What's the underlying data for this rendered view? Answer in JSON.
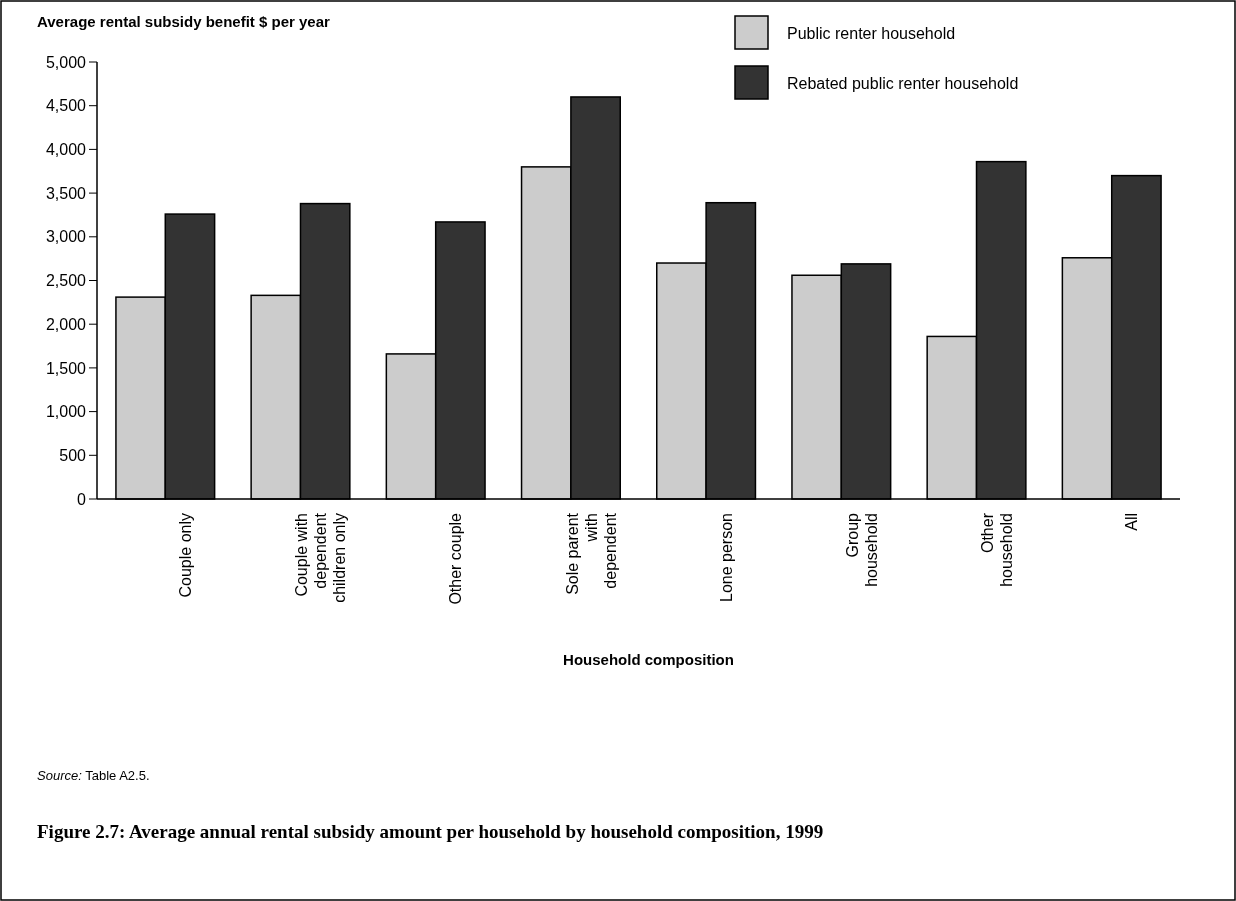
{
  "chart_data": {
    "type": "bar",
    "title": "Figure 2.7: Average annual rental subsidy amount per household by household composition, 1999",
    "ylabel": "Average rental subsidy benefit $ per year",
    "xlabel": "Household composition",
    "annotations": [
      "Source: Table A2.5."
    ],
    "categories": [
      "Couple only",
      "Couple with dependent children only",
      "Other couple",
      "Sole parent with dependent",
      "Lone person",
      "Group household",
      "Other household",
      "All"
    ],
    "series": [
      {
        "name": "Public renter household",
        "color": "#cccccc",
        "values": [
          2310,
          2330,
          1660,
          3800,
          2700,
          2560,
          1860,
          2760
        ]
      },
      {
        "name": "Rebated public renter household",
        "color": "#333333",
        "values": [
          3260,
          3380,
          3170,
          4600,
          3390,
          2690,
          3860,
          3700
        ]
      }
    ],
    "ylim": [
      0,
      5000
    ],
    "yticks": [
      {
        "value": 0,
        "label": "0"
      },
      {
        "value": 500,
        "label": "500"
      },
      {
        "value": 1000,
        "label": "1,000"
      },
      {
        "value": 1500,
        "label": "1,500"
      },
      {
        "value": 2000,
        "label": "2,000"
      },
      {
        "value": 2500,
        "label": "2,500"
      },
      {
        "value": 3000,
        "label": "3,000"
      },
      {
        "value": 3500,
        "label": "3,500"
      },
      {
        "value": 4000,
        "label": "4,000"
      },
      {
        "value": 4500,
        "label": "4,500"
      },
      {
        "value": 5000,
        "label": "5,000"
      }
    ],
    "grid": false,
    "legend": "top right"
  }
}
